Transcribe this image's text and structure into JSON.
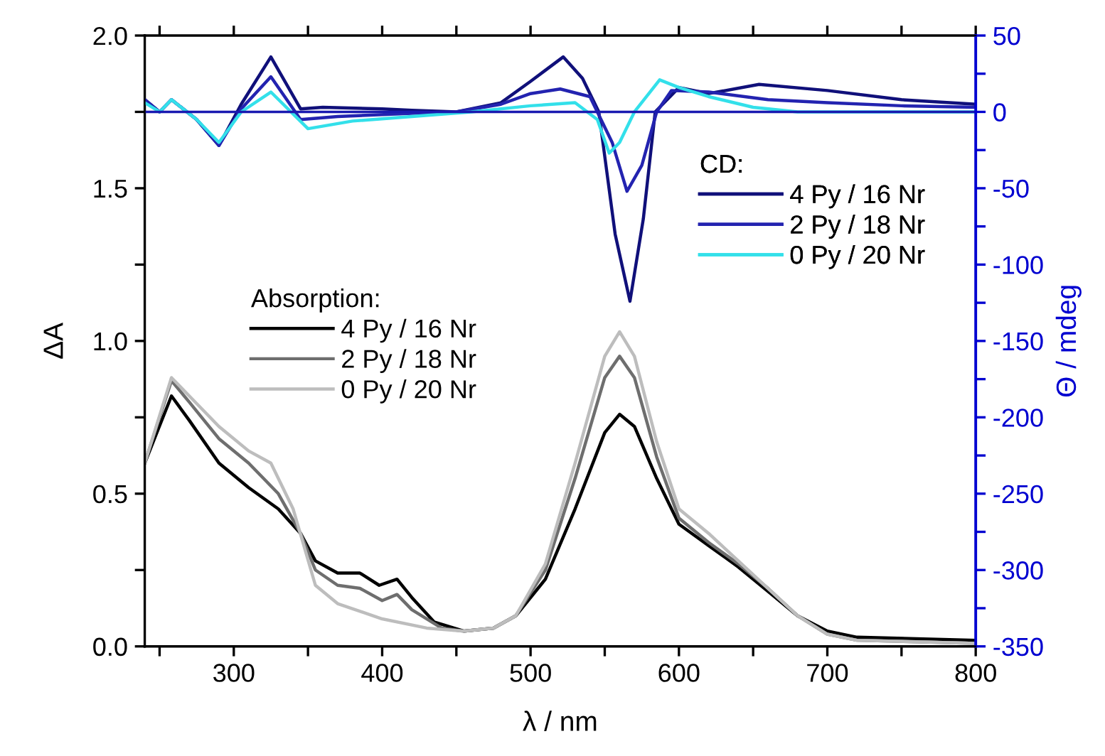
{
  "chart_data": {
    "type": "line",
    "xlabel": "λ / nm",
    "ylabel": "ΔA",
    "y2label": "Θ / mdeg",
    "annotations": [
      "Absorption:",
      "CD:"
    ],
    "legend": "center",
    "xlim": [
      240,
      800
    ],
    "xticks": [
      {
        "value": 250,
        "label": null
      },
      300,
      {
        "value": 350,
        "label": null
      },
      400,
      {
        "value": 450,
        "label": null
      },
      500,
      {
        "value": 550,
        "label": null
      },
      600,
      {
        "value": 650,
        "label": null
      },
      700,
      {
        "value": 750,
        "label": null
      },
      800
    ],
    "ylim": [
      0,
      2
    ],
    "yticks": [
      "0.0",
      {
        "value": 0.25,
        "label": null
      },
      {
        "value": 0.5,
        "label": "0.5"
      },
      {
        "value": 0.75,
        "label": null
      },
      {
        "value": 1.0,
        "label": "1.0"
      },
      {
        "value": 1.25,
        "label": null
      },
      {
        "value": 1.5,
        "label": "1.5"
      },
      {
        "value": 1.75,
        "label": null
      },
      {
        "value": 2.0,
        "label": "2.0"
      }
    ],
    "y2lim": [
      -350,
      50
    ],
    "y2ticks": [
      -350,
      {
        "value": -325,
        "label": null
      },
      -300,
      {
        "value": -275,
        "label": null
      },
      -250,
      {
        "value": -225,
        "label": null
      },
      -200,
      {
        "value": -175,
        "label": null
      },
      -150,
      {
        "value": -125,
        "label": null
      },
      -100,
      {
        "value": -75,
        "label": null
      },
      -50,
      {
        "value": -25,
        "label": null
      },
      0,
      {
        "value": 25,
        "label": null
      },
      50
    ],
    "ref_lines": [
      {
        "axis": "y2",
        "value": 0,
        "color": "#1a1ab0"
      }
    ],
    "series": [
      {
        "name": "4 Py / 16 Nr",
        "color": "#000000",
        "x": [
          240,
          258,
          270,
          290,
          310,
          330,
          345,
          355,
          370,
          385,
          398,
          410,
          420,
          435,
          455,
          475,
          490,
          510,
          530,
          550,
          560,
          570,
          585,
          600,
          620,
          640,
          660,
          680,
          700,
          720,
          800
        ],
        "values": [
          0.6,
          0.82,
          0.74,
          0.6,
          0.52,
          0.45,
          0.37,
          0.28,
          0.24,
          0.24,
          0.2,
          0.22,
          0.16,
          0.08,
          0.05,
          0.06,
          0.1,
          0.22,
          0.45,
          0.7,
          0.76,
          0.72,
          0.55,
          0.4,
          0.33,
          0.26,
          0.18,
          0.1,
          0.05,
          0.03,
          0.02
        ]
      },
      {
        "name": "2 Py / 18 Nr",
        "color": "#6e6e6e",
        "x": [
          240,
          258,
          270,
          290,
          310,
          330,
          345,
          355,
          370,
          385,
          400,
          410,
          420,
          440,
          455,
          475,
          490,
          510,
          530,
          550,
          560,
          570,
          585,
          600,
          620,
          640,
          660,
          680,
          700,
          720,
          800
        ],
        "values": [
          0.6,
          0.87,
          0.8,
          0.68,
          0.6,
          0.5,
          0.37,
          0.25,
          0.2,
          0.19,
          0.15,
          0.17,
          0.12,
          0.06,
          0.05,
          0.06,
          0.1,
          0.25,
          0.55,
          0.88,
          0.95,
          0.88,
          0.62,
          0.42,
          0.34,
          0.27,
          0.19,
          0.1,
          0.04,
          0.02,
          0.01
        ]
      },
      {
        "name": "0 Py / 20 Nr",
        "color": "#bdbdbd",
        "x": [
          240,
          258,
          270,
          290,
          310,
          325,
          340,
          355,
          370,
          400,
          430,
          455,
          475,
          490,
          510,
          530,
          550,
          560,
          570,
          585,
          600,
          620,
          640,
          660,
          680,
          700,
          720,
          800
        ],
        "values": [
          0.6,
          0.88,
          0.82,
          0.72,
          0.64,
          0.6,
          0.45,
          0.2,
          0.14,
          0.09,
          0.06,
          0.05,
          0.06,
          0.1,
          0.27,
          0.6,
          0.95,
          1.03,
          0.95,
          0.67,
          0.45,
          0.37,
          0.28,
          0.19,
          0.1,
          0.04,
          0.02,
          0.01
        ]
      },
      {
        "name": "4 Py / 16 Nr",
        "color": "#10107a",
        "axis": "y2",
        "x": [
          240,
          250,
          258,
          275,
          290,
          305,
          325,
          345,
          360,
          400,
          420,
          450,
          480,
          500,
          522,
          535,
          546,
          557,
          567,
          576,
          584,
          600,
          620,
          654,
          700,
          750,
          800
        ],
        "values": [
          8,
          0,
          8,
          -5,
          -22,
          5,
          36,
          2,
          3,
          2,
          1,
          0,
          6,
          20,
          36,
          22,
          0,
          -80,
          -124,
          -70,
          0,
          16,
          12,
          18,
          14,
          8,
          5
        ]
      },
      {
        "name": "2 Py / 18 Nr",
        "color": "#2323b0",
        "axis": "y2",
        "x": [
          240,
          250,
          258,
          275,
          290,
          305,
          325,
          345,
          370,
          420,
          450,
          480,
          500,
          520,
          540,
          555,
          565,
          575,
          585,
          595,
          620,
          660,
          700,
          750,
          800
        ],
        "values": [
          8,
          0,
          8,
          -5,
          -22,
          2,
          23,
          -5,
          -3,
          -1,
          0,
          5,
          12,
          15,
          10,
          -20,
          -52,
          -35,
          0,
          14,
          13,
          8,
          6,
          4,
          3
        ]
      },
      {
        "name": "0 Py / 20 Nr",
        "color": "#33e0ea",
        "axis": "y2",
        "x": [
          240,
          250,
          258,
          275,
          290,
          305,
          325,
          350,
          380,
          420,
          460,
          500,
          530,
          545,
          553,
          560,
          570,
          587,
          600,
          620,
          650,
          680,
          800
        ],
        "values": [
          6,
          0,
          8,
          -5,
          -20,
          0,
          13,
          -11,
          -6,
          -3,
          0,
          4,
          6,
          -5,
          -27,
          -20,
          0,
          21,
          16,
          10,
          3,
          0,
          0
        ]
      }
    ]
  }
}
